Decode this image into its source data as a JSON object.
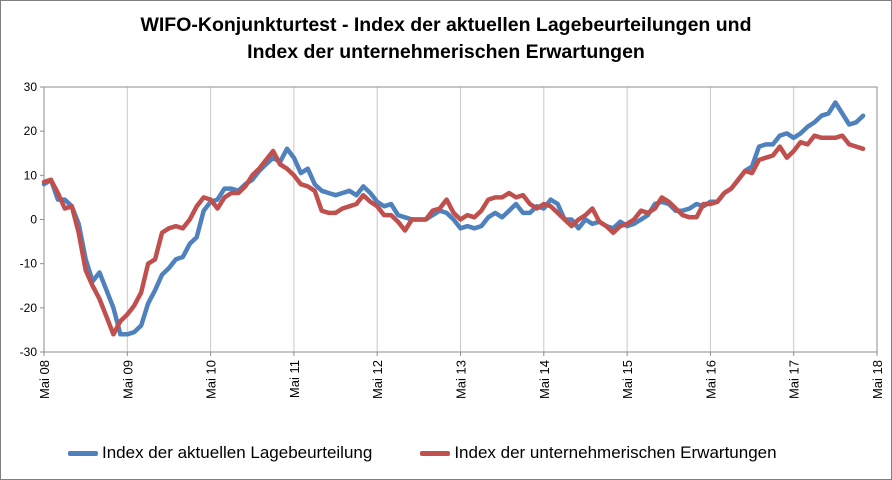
{
  "chart_data": {
    "type": "line",
    "title_lines": [
      "WIFO-Konjunkturtest - Index der aktuellen Lagebeurteilungen und",
      "Index der unternehmerischen Erwartungen"
    ],
    "xlabel": "",
    "ylabel": "",
    "ylim": [
      -30,
      30
    ],
    "yticks": [
      -30,
      -20,
      -10,
      0,
      10,
      20,
      30
    ],
    "xticks": [
      "Mai 08",
      "Mai 09",
      "Mai 10",
      "Mai 11",
      "Mai 12",
      "Mai 13",
      "Mai 14",
      "Mai 15",
      "Mai 16",
      "Mai 17",
      "Mai 18"
    ],
    "grid": "vertical",
    "legend_position": "bottom",
    "x_index_note": "",
    "series": [
      {
        "name": "Index der aktuellen Lagebeurteilung",
        "color": "#4f81bd",
        "points": [
          [
            0,
            8
          ],
          [
            1,
            9
          ],
          [
            2,
            4.5
          ],
          [
            3,
            4.5
          ],
          [
            4,
            3
          ],
          [
            5,
            -1
          ],
          [
            6,
            -9
          ],
          [
            7,
            -14
          ],
          [
            8,
            -12
          ],
          [
            9,
            -16
          ],
          [
            10,
            -20
          ],
          [
            11,
            -26
          ],
          [
            12,
            -26
          ],
          [
            13,
            -25.5
          ],
          [
            14,
            -24
          ],
          [
            15,
            -19
          ],
          [
            16,
            -16
          ],
          [
            17,
            -12.5
          ],
          [
            18,
            -11
          ],
          [
            19,
            -9
          ],
          [
            20,
            -8.5
          ],
          [
            21,
            -5.5
          ],
          [
            22,
            -4
          ],
          [
            23,
            2
          ],
          [
            24,
            4
          ],
          [
            25,
            4.5
          ],
          [
            26,
            7
          ],
          [
            27,
            7
          ],
          [
            28,
            6.5
          ],
          [
            29,
            8
          ],
          [
            30,
            9
          ],
          [
            31,
            11
          ],
          [
            32,
            12.5
          ],
          [
            33,
            14
          ],
          [
            34,
            13
          ],
          [
            35,
            16
          ],
          [
            36,
            14
          ],
          [
            37,
            10.5
          ],
          [
            38,
            11.5
          ],
          [
            39,
            8
          ],
          [
            40,
            6.5
          ],
          [
            41,
            6
          ],
          [
            42,
            5.5
          ],
          [
            43,
            6
          ],
          [
            44,
            6.5
          ],
          [
            45,
            5.5
          ],
          [
            46,
            7.5
          ],
          [
            47,
            6
          ],
          [
            48,
            4
          ],
          [
            49,
            3
          ],
          [
            50,
            3.5
          ],
          [
            51,
            1
          ],
          [
            52,
            0.5
          ],
          [
            53,
            0
          ],
          [
            54,
            0
          ],
          [
            55,
            0
          ],
          [
            56,
            1
          ],
          [
            57,
            2
          ],
          [
            58,
            1.5
          ],
          [
            59,
            0
          ],
          [
            60,
            -2
          ],
          [
            61,
            -1.5
          ],
          [
            62,
            -2
          ],
          [
            63,
            -1.5
          ],
          [
            64,
            0.5
          ],
          [
            65,
            1.5
          ],
          [
            66,
            0.5
          ],
          [
            67,
            2
          ],
          [
            68,
            3.5
          ],
          [
            69,
            1.5
          ],
          [
            70,
            1.5
          ],
          [
            71,
            3
          ],
          [
            72,
            2.5
          ],
          [
            73,
            4.5
          ],
          [
            74,
            3.5
          ],
          [
            75,
            0
          ],
          [
            76,
            0
          ],
          [
            77,
            -2
          ],
          [
            78,
            0
          ],
          [
            79,
            -1
          ],
          [
            80,
            -0.5
          ],
          [
            81,
            -1.5
          ],
          [
            82,
            -2
          ],
          [
            83,
            -0.5
          ],
          [
            84,
            -1.5
          ],
          [
            85,
            -1
          ],
          [
            86,
            0
          ],
          [
            87,
            1
          ],
          [
            88,
            3.5
          ],
          [
            89,
            4
          ],
          [
            90,
            3.5
          ],
          [
            91,
            2
          ],
          [
            92,
            2
          ],
          [
            93,
            2.5
          ],
          [
            94,
            3.5
          ],
          [
            95,
            3
          ],
          [
            96,
            4
          ],
          [
            97,
            4
          ],
          [
            98,
            6
          ],
          [
            99,
            7
          ],
          [
            100,
            9
          ],
          [
            101,
            11
          ],
          [
            102,
            12
          ],
          [
            103,
            16.5
          ],
          [
            104,
            17
          ],
          [
            105,
            17
          ],
          [
            106,
            19
          ],
          [
            107,
            19.5
          ],
          [
            108,
            18.5
          ],
          [
            109,
            19.5
          ],
          [
            110,
            21
          ],
          [
            111,
            22
          ],
          [
            112,
            23.5
          ],
          [
            113,
            24
          ],
          [
            114,
            26.5
          ],
          [
            115,
            24
          ],
          [
            116,
            21.5
          ],
          [
            117,
            22
          ],
          [
            118,
            23.5
          ]
        ]
      },
      {
        "name": "Index der unternehmerischen Erwartungen",
        "color": "#c0504d",
        "points": [
          [
            0,
            8.5
          ],
          [
            1,
            9
          ],
          [
            2,
            6
          ],
          [
            3,
            2.5
          ],
          [
            4,
            3
          ],
          [
            5,
            -3
          ],
          [
            6,
            -11.5
          ],
          [
            7,
            -15
          ],
          [
            8,
            -18
          ],
          [
            9,
            -22
          ],
          [
            10,
            -26
          ],
          [
            11,
            -23
          ],
          [
            12,
            -21.5
          ],
          [
            13,
            -19.5
          ],
          [
            14,
            -16.5
          ],
          [
            15,
            -10
          ],
          [
            16,
            -9
          ],
          [
            17,
            -3
          ],
          [
            18,
            -2
          ],
          [
            19,
            -1.5
          ],
          [
            20,
            -2
          ],
          [
            21,
            0
          ],
          [
            22,
            3
          ],
          [
            23,
            5
          ],
          [
            24,
            4.5
          ],
          [
            25,
            2.5
          ],
          [
            26,
            5
          ],
          [
            27,
            6
          ],
          [
            28,
            6
          ],
          [
            29,
            7.5
          ],
          [
            30,
            10
          ],
          [
            31,
            11.5
          ],
          [
            32,
            13.5
          ],
          [
            33,
            15.5
          ],
          [
            34,
            12.5
          ],
          [
            35,
            11.5
          ],
          [
            36,
            10
          ],
          [
            37,
            8
          ],
          [
            38,
            7.5
          ],
          [
            39,
            6.5
          ],
          [
            40,
            2
          ],
          [
            41,
            1.5
          ],
          [
            42,
            1.5
          ],
          [
            43,
            2.5
          ],
          [
            44,
            3
          ],
          [
            45,
            3.5
          ],
          [
            46,
            5.5
          ],
          [
            47,
            4
          ],
          [
            48,
            3
          ],
          [
            49,
            1
          ],
          [
            50,
            1
          ],
          [
            51,
            -0.5
          ],
          [
            52,
            -2.5
          ],
          [
            53,
            0
          ],
          [
            54,
            0
          ],
          [
            55,
            0
          ],
          [
            56,
            2
          ],
          [
            57,
            2.5
          ],
          [
            58,
            4.5
          ],
          [
            59,
            1.5
          ],
          [
            60,
            0
          ],
          [
            61,
            1
          ],
          [
            62,
            0.5
          ],
          [
            63,
            2
          ],
          [
            64,
            4.5
          ],
          [
            65,
            5
          ],
          [
            66,
            5
          ],
          [
            67,
            6
          ],
          [
            68,
            5
          ],
          [
            69,
            5.5
          ],
          [
            70,
            3.5
          ],
          [
            71,
            2.5
          ],
          [
            72,
            3.5
          ],
          [
            73,
            3
          ],
          [
            74,
            1.5
          ],
          [
            75,
            0
          ],
          [
            76,
            -1.5
          ],
          [
            77,
            0
          ],
          [
            78,
            1
          ],
          [
            79,
            2.5
          ],
          [
            80,
            -0.5
          ],
          [
            81,
            -1.5
          ],
          [
            82,
            -3
          ],
          [
            83,
            -1.5
          ],
          [
            84,
            -1
          ],
          [
            85,
            0
          ],
          [
            86,
            2
          ],
          [
            87,
            1.5
          ],
          [
            88,
            2.5
          ],
          [
            89,
            5
          ],
          [
            90,
            4
          ],
          [
            91,
            2.5
          ],
          [
            92,
            1
          ],
          [
            93,
            0.5
          ],
          [
            94,
            0.5
          ],
          [
            95,
            3.5
          ],
          [
            96,
            3.5
          ],
          [
            97,
            4
          ],
          [
            98,
            6
          ],
          [
            99,
            7
          ],
          [
            100,
            9
          ],
          [
            101,
            11
          ],
          [
            102,
            10.5
          ],
          [
            103,
            13.5
          ],
          [
            104,
            14
          ],
          [
            105,
            14.5
          ],
          [
            106,
            16.5
          ],
          [
            107,
            14
          ],
          [
            108,
            15.5
          ],
          [
            109,
            17.5
          ],
          [
            110,
            17
          ],
          [
            111,
            19
          ],
          [
            112,
            18.5
          ],
          [
            113,
            18.5
          ],
          [
            114,
            18.5
          ],
          [
            115,
            19
          ],
          [
            116,
            17
          ],
          [
            117,
            16.5
          ],
          [
            118,
            16
          ]
        ]
      }
    ]
  }
}
